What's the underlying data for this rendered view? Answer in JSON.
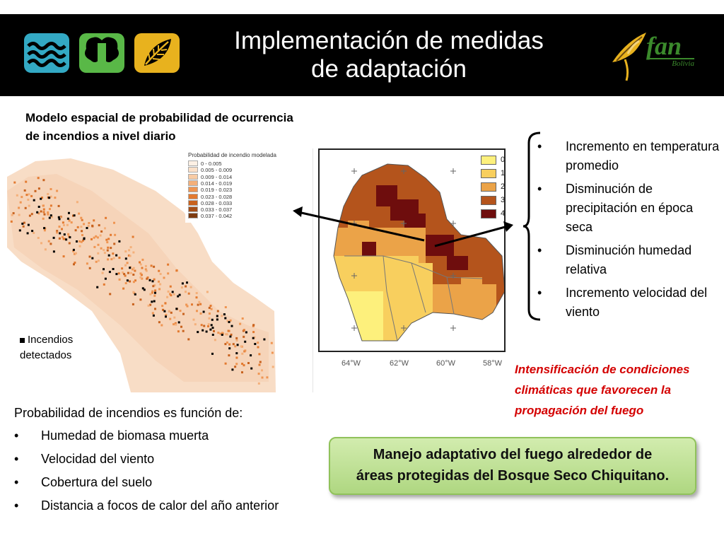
{
  "header": {
    "title_line1": "Implementación de medidas",
    "title_line2": "de adaptación",
    "logo_text": "fan",
    "logo_sub": "Bolivia",
    "colors": {
      "bar": "#000000",
      "water_logo": "#33a9c4",
      "tree_logo": "#59b847",
      "leaf_logo": "#e8b21e"
    }
  },
  "left_map": {
    "title": "Modelo espacial de probabilidad de ocurrencia de incendios a nivel diario",
    "legend_title": "Probabilidad de incendio modelada",
    "legend": [
      {
        "label": "0 - 0.005",
        "color": "#fdf0e4"
      },
      {
        "label": "0.005 - 0.009",
        "color": "#fbe0c8"
      },
      {
        "label": "0.009 - 0.014",
        "color": "#f8cba4"
      },
      {
        "label": "0.014 - 0.019",
        "color": "#f4b07a"
      },
      {
        "label": "0.019 - 0.023",
        "color": "#ef9552"
      },
      {
        "label": "0.023 - 0.028",
        "color": "#e37a30"
      },
      {
        "label": "0.028 - 0.033",
        "color": "#c8621e"
      },
      {
        "label": "0.033 - 0.037",
        "color": "#a54e17"
      },
      {
        "label": "0.037 - 0.042",
        "color": "#7d3b10"
      }
    ],
    "fires_label": "Incendios detectados"
  },
  "right_map": {
    "legend": [
      {
        "label": "0",
        "color": "#fdf07c"
      },
      {
        "label": "1",
        "color": "#f8cf5e"
      },
      {
        "label": "2",
        "color": "#eba348"
      },
      {
        "label": "3",
        "color": "#b4541c"
      },
      {
        "label": "4",
        "color": "#6e0d0d"
      }
    ],
    "x_ticks": [
      "64°W",
      "62°W",
      "60°W",
      "58°W"
    ]
  },
  "right_bullets": [
    "Incremento en temperatura promedio",
    "Disminución de precipitación en época seca",
    "Disminución humedad relativa",
    "Incremento velocidad del viento"
  ],
  "intensify_text": "Intensificación de condiciones climáticas que favorecen la propagación del fuego",
  "probability": {
    "intro": "Probabilidad de incendios es función de:",
    "items": [
      "Humedad de biomasa muerta",
      "Velocidad del viento",
      "Cobertura del suelo",
      "Distancia a focos de calor del año anterior"
    ]
  },
  "green_box": {
    "line1": "Manejo adaptativo del fuego alrededor de",
    "line2": "áreas protegidas del Bosque Seco Chiquitano."
  }
}
